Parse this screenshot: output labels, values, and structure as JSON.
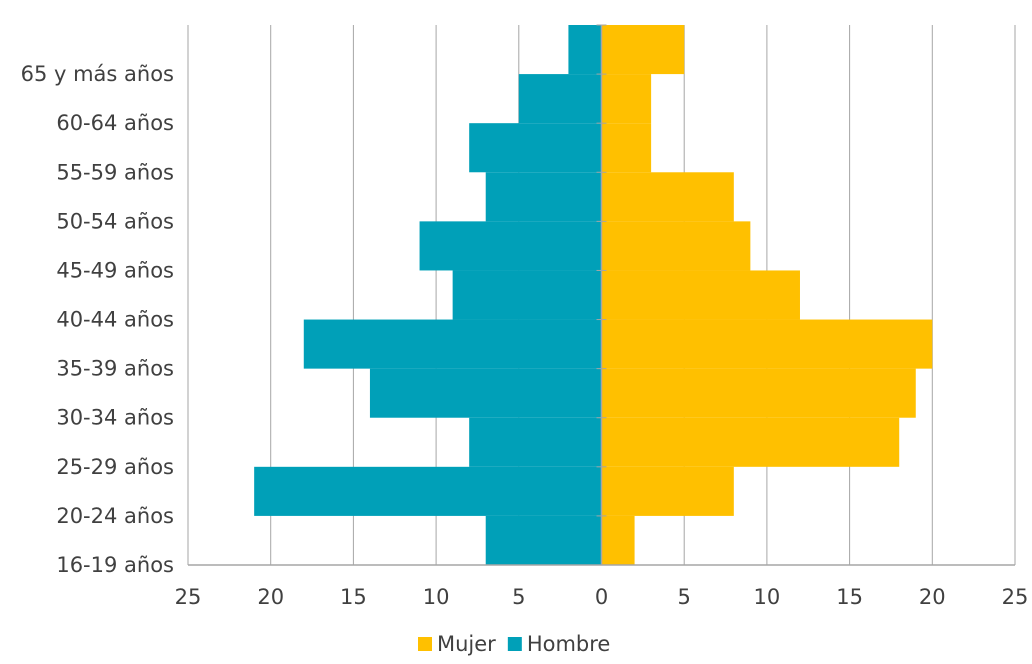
{
  "chart_data": {
    "type": "bar",
    "orientation": "horizontal-population-pyramid",
    "categories": [
      "16-19 años",
      "20-24 años",
      "25-29 años",
      "30-34 años",
      "35-39 años",
      "40-44 años",
      "45-49 años",
      "50-54 años",
      "55-59 años",
      "60-64 años",
      "65 y más años"
    ],
    "series": [
      {
        "name": "Mujer",
        "color": "#FFC000",
        "values": [
          2,
          8,
          18,
          19,
          20,
          12,
          9,
          8,
          3,
          3,
          5
        ]
      },
      {
        "name": "Hombre",
        "color": "#00A0B8",
        "values": [
          7,
          21,
          8,
          14,
          18,
          9,
          11,
          7,
          8,
          5,
          2
        ]
      }
    ],
    "x_ticks": [
      {
        "value": -25,
        "label": "25"
      },
      {
        "value": -20,
        "label": "20"
      },
      {
        "value": -15,
        "label": "15"
      },
      {
        "value": -10,
        "label": "10"
      },
      {
        "value": -5,
        "label": "5"
      },
      {
        "value": 0,
        "label": "0"
      },
      {
        "value": 5,
        "label": "5"
      },
      {
        "value": 10,
        "label": "10"
      },
      {
        "value": 15,
        "label": "15"
      },
      {
        "value": 20,
        "label": "20"
      },
      {
        "value": 25,
        "label": "25"
      }
    ],
    "xlim": [
      -25,
      25
    ],
    "grid": "vertical",
    "legend": "bottom-center",
    "gridline_color": "#A6A6A6",
    "text_color": "#404040"
  }
}
